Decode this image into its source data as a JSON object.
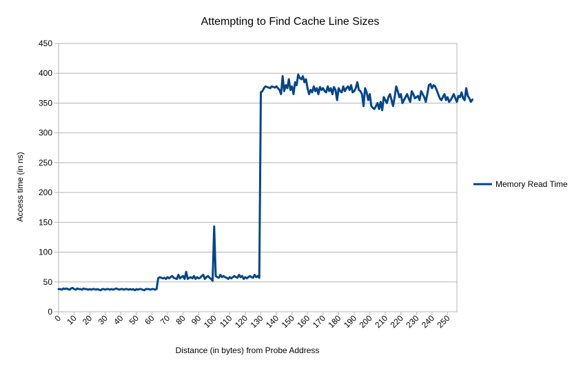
{
  "chart_data": {
    "type": "line",
    "title": "Attempting to Find Cache Line Sizes",
    "xlabel": "Distance (in bytes) from Probe Address",
    "ylabel": "Access time (in ns)",
    "xlim": [
      0,
      256
    ],
    "ylim": [
      0,
      450
    ],
    "x_ticks": [
      0,
      10,
      20,
      30,
      40,
      50,
      60,
      70,
      80,
      90,
      100,
      110,
      120,
      130,
      140,
      150,
      160,
      170,
      180,
      190,
      200,
      210,
      220,
      230,
      240,
      250
    ],
    "y_ticks": [
      0,
      50,
      100,
      150,
      200,
      250,
      300,
      350,
      400,
      450
    ],
    "grid": "horizontal",
    "legend": "right",
    "series": [
      {
        "name": "Memory Read Time",
        "color": "#004586",
        "x_start": 0,
        "x_step": 1,
        "values": [
          38,
          38,
          37,
          39,
          38,
          39,
          38,
          37,
          39,
          40,
          38,
          37,
          39,
          38,
          38,
          37,
          39,
          38,
          38,
          37,
          38,
          37,
          38,
          38,
          37,
          38,
          37,
          36,
          38,
          38,
          37,
          38,
          38,
          37,
          38,
          37,
          38,
          39,
          38,
          37,
          38,
          38,
          37,
          38,
          38,
          37,
          38,
          37,
          38,
          36,
          38,
          37,
          38,
          38,
          37,
          36,
          38,
          38,
          38,
          37,
          38,
          38,
          37,
          38,
          56,
          58,
          57,
          56,
          57,
          55,
          58,
          56,
          58,
          60,
          57,
          56,
          55,
          62,
          56,
          58,
          60,
          55,
          67,
          55,
          57,
          58,
          56,
          60,
          55,
          58,
          56,
          57,
          60,
          62,
          55,
          58,
          60,
          57,
          55,
          52,
          143,
          60,
          58,
          57,
          62,
          58,
          60,
          58,
          57,
          55,
          58,
          56,
          58,
          60,
          58,
          57,
          62,
          58,
          60,
          55,
          58,
          56,
          58,
          60,
          58,
          57,
          62,
          58,
          60,
          57,
          368,
          370,
          375,
          378,
          377,
          376,
          375,
          378,
          377,
          376,
          378,
          375,
          372,
          365,
          395,
          370,
          380,
          375,
          390,
          372,
          378,
          365,
          385,
          380,
          398,
          392,
          390,
          395,
          385,
          390,
          375,
          365,
          372,
          368,
          378,
          370,
          375,
          365,
          377,
          372,
          375,
          370,
          368,
          378,
          370,
          375,
          365,
          377,
          372,
          355,
          375,
          370,
          368,
          378,
          370,
          375,
          378,
          372,
          380,
          368,
          370,
          375,
          385,
          372,
          370,
          365,
          345,
          375,
          368,
          355,
          365,
          345,
          342,
          340,
          345,
          350,
          340,
          352,
          338,
          360,
          355,
          350,
          360,
          365,
          355,
          345,
          360,
          378,
          370,
          360,
          365,
          350,
          355,
          360,
          365,
          358,
          352,
          370,
          365,
          358,
          360,
          362,
          355,
          370,
          365,
          360,
          352,
          365,
          380,
          382,
          375,
          380,
          378,
          372,
          365,
          358,
          355,
          360,
          365,
          355,
          360,
          352,
          355,
          360,
          365,
          358,
          352,
          362,
          360,
          368,
          358,
          355,
          375,
          362,
          358,
          352,
          356
        ]
      }
    ]
  }
}
